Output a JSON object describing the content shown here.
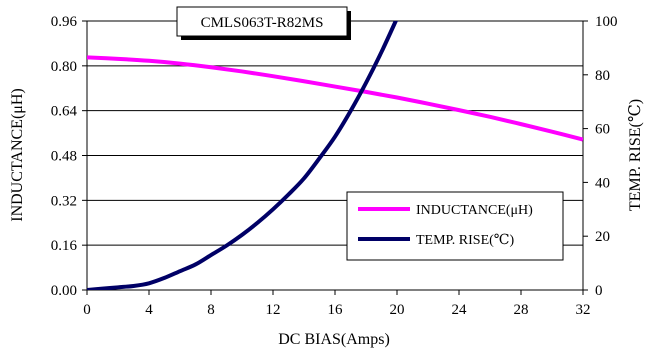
{
  "chart_data": {
    "type": "line",
    "title": "CMLS063T-R82MS",
    "xlabel": "DC BIAS(Amps)",
    "ylabel_left": "INDUCTANCE(μH)",
    "ylabel_right": "TEMP. RISE(℃)",
    "xlim": [
      0,
      32
    ],
    "ylim_left": [
      0,
      0.96
    ],
    "ylim_right": [
      0,
      100
    ],
    "x_ticks": [
      "0",
      "4",
      "8",
      "12",
      "16",
      "20",
      "24",
      "28",
      "32"
    ],
    "y_left_ticks": [
      "0.00",
      "0.16",
      "0.32",
      "0.48",
      "0.64",
      "0.80",
      "0.96"
    ],
    "y_right_ticks": [
      "0",
      "20",
      "40",
      "60",
      "80",
      "100"
    ],
    "grid": "horizontal",
    "legend_position": "lower-right",
    "series": [
      {
        "name": "INDUCTANCE(μH)",
        "axis": "left",
        "color": "#ff00ff",
        "x": [
          0,
          2,
          4,
          6,
          8,
          10,
          12,
          14,
          16,
          18,
          20,
          22,
          24,
          26,
          28,
          30,
          32
        ],
        "y": [
          0.83,
          0.825,
          0.818,
          0.808,
          0.795,
          0.78,
          0.763,
          0.745,
          0.726,
          0.707,
          0.687,
          0.665,
          0.642,
          0.618,
          0.592,
          0.565,
          0.537
        ]
      },
      {
        "name": "TEMP. RISE(℃)",
        "axis": "right",
        "color": "#000066",
        "x": [
          0,
          1,
          2,
          3,
          4,
          5,
          6,
          7,
          8,
          9,
          10,
          11,
          12,
          13,
          14,
          15,
          16,
          17,
          18,
          19,
          20
        ],
        "y": [
          0,
          0.5,
          1,
          1.5,
          2.5,
          4.5,
          7,
          9.5,
          13,
          16.5,
          20.5,
          25,
          30,
          35.5,
          41.5,
          49,
          57,
          66.5,
          77,
          88.5,
          101
        ]
      }
    ]
  }
}
